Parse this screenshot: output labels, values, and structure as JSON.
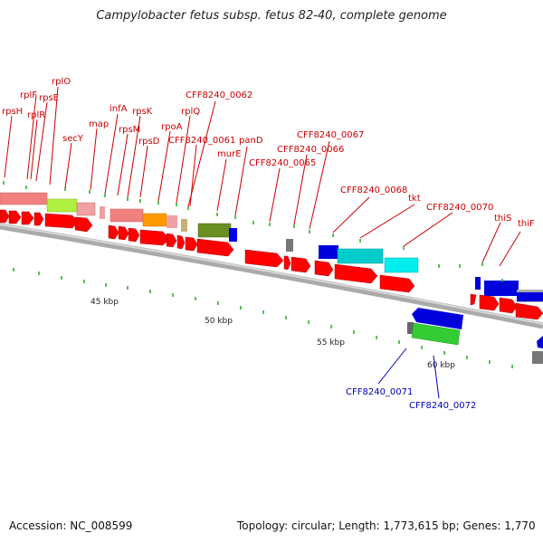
{
  "title": "Campylobacter fetus subsp. fetus 82-40, complete genome",
  "footer": {
    "accession": "Accession: NC_008599",
    "topology": "Topology: circular; Length: 1,773,615 bp; Genes: 1,770"
  },
  "colors": {
    "backbone": "#888888",
    "forward_gene": "#ff0000",
    "label_top": "#cc0000",
    "label_bottom": "#0000bb",
    "tick": "#22aa22"
  },
  "scale_ticks": [
    {
      "label": "45 kbp"
    },
    {
      "label": "50 kbp"
    },
    {
      "label": "55 kbp"
    },
    {
      "label": "60 kbp"
    }
  ],
  "gene_labels_top": [
    {
      "text": "rplO"
    },
    {
      "text": "rpsE"
    },
    {
      "text": "rplF"
    },
    {
      "text": "rplR"
    },
    {
      "text": "rpsH"
    },
    {
      "text": "secY"
    },
    {
      "text": "map"
    },
    {
      "text": "infA"
    },
    {
      "text": "rpsK"
    },
    {
      "text": "rpsM"
    },
    {
      "text": "rpsD"
    },
    {
      "text": "rpoA"
    },
    {
      "text": "rplQ"
    },
    {
      "text": "CFF8240_0062"
    },
    {
      "text": "CFF8240_0061"
    },
    {
      "text": "murE"
    },
    {
      "text": "panD"
    },
    {
      "text": "CFF8240_0065"
    },
    {
      "text": "CFF8240_0066"
    },
    {
      "text": "CFF8240_0067"
    },
    {
      "text": "CFF8240_0068"
    },
    {
      "text": "tkt"
    },
    {
      "text": "CFF8240_0070"
    },
    {
      "text": "thiS"
    },
    {
      "text": "thiF"
    }
  ],
  "gene_labels_bottom": [
    {
      "text": "CFF8240_0071"
    },
    {
      "text": "CFF8240_0072"
    }
  ]
}
